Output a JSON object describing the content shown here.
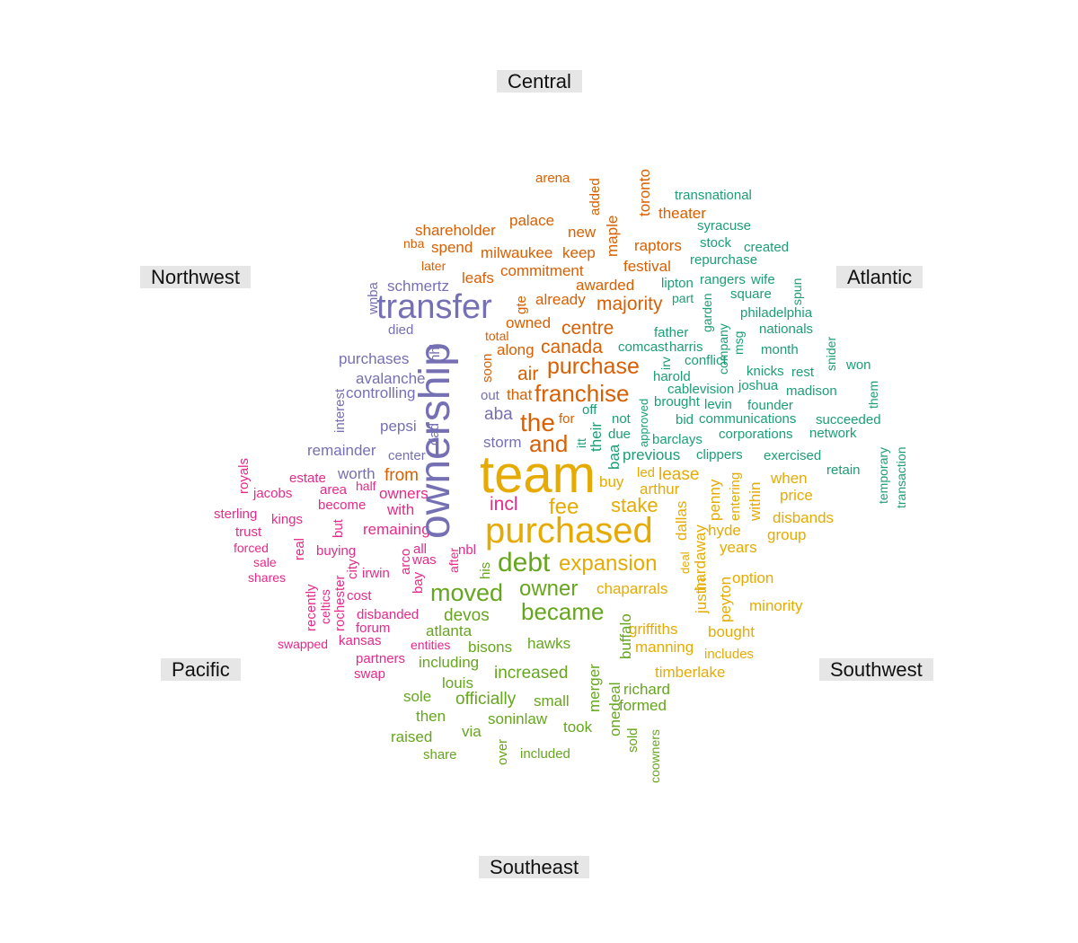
{
  "chart_data": {
    "type": "comparison-word-cloud",
    "groups": [
      {
        "name": "Central",
        "color": "#d95f02"
      },
      {
        "name": "Atlantic",
        "color": "#1b9e77"
      },
      {
        "name": "Southwest",
        "color": "#e6ab02"
      },
      {
        "name": "Southeast",
        "color": "#66a61e"
      },
      {
        "name": "Pacific",
        "color": "#e7298a"
      },
      {
        "name": "Northwest",
        "color": "#7570b3"
      }
    ],
    "words": [
      {
        "t": "arena",
        "g": "Central",
        "s": 15
      },
      {
        "t": "added",
        "g": "Central",
        "s": 15
      },
      {
        "t": "toronto",
        "g": "Central",
        "s": 17
      },
      {
        "t": "theater",
        "g": "Central",
        "s": 17
      },
      {
        "t": "maple",
        "g": "Central",
        "s": 17
      },
      {
        "t": "palace",
        "g": "Central",
        "s": 17
      },
      {
        "t": "shareholder",
        "g": "Central",
        "s": 17
      },
      {
        "t": "new",
        "g": "Central",
        "s": 17
      },
      {
        "t": "nba",
        "g": "Central",
        "s": 14
      },
      {
        "t": "spend",
        "g": "Central",
        "s": 17
      },
      {
        "t": "milwaukee",
        "g": "Central",
        "s": 17
      },
      {
        "t": "keep",
        "g": "Central",
        "s": 17
      },
      {
        "t": "raptors",
        "g": "Central",
        "s": 17
      },
      {
        "t": "later",
        "g": "Central",
        "s": 14
      },
      {
        "t": "festival",
        "g": "Central",
        "s": 17
      },
      {
        "t": "commitment",
        "g": "Central",
        "s": 17
      },
      {
        "t": "leafs",
        "g": "Central",
        "s": 17
      },
      {
        "t": "awarded",
        "g": "Central",
        "s": 17
      },
      {
        "t": "gte",
        "g": "Central",
        "s": 15
      },
      {
        "t": "already",
        "g": "Central",
        "s": 17
      },
      {
        "t": "majority",
        "g": "Central",
        "s": 21
      },
      {
        "t": "owned",
        "g": "Central",
        "s": 17
      },
      {
        "t": "centre",
        "g": "Central",
        "s": 21
      },
      {
        "t": "total",
        "g": "Central",
        "s": 14
      },
      {
        "t": "canada",
        "g": "Central",
        "s": 21
      },
      {
        "t": "along",
        "g": "Central",
        "s": 17
      },
      {
        "t": "purchase",
        "g": "Central",
        "s": 25
      },
      {
        "t": "soon",
        "g": "Central",
        "s": 15
      },
      {
        "t": "air",
        "g": "Central",
        "s": 21
      },
      {
        "t": "franchise",
        "g": "Central",
        "s": 26
      },
      {
        "t": "that",
        "g": "Central",
        "s": 17
      },
      {
        "t": "for",
        "g": "Central",
        "s": 15
      },
      {
        "t": "the",
        "g": "Central",
        "s": 28
      },
      {
        "t": "and",
        "g": "Central",
        "s": 26
      },
      {
        "t": "transnational",
        "g": "Atlantic",
        "s": 15
      },
      {
        "t": "syracuse",
        "g": "Atlantic",
        "s": 15
      },
      {
        "t": "stock",
        "g": "Atlantic",
        "s": 15
      },
      {
        "t": "created",
        "g": "Atlantic",
        "s": 15
      },
      {
        "t": "repurchase",
        "g": "Atlantic",
        "s": 15
      },
      {
        "t": "rangers",
        "g": "Atlantic",
        "s": 15
      },
      {
        "t": "wife",
        "g": "Atlantic",
        "s": 15
      },
      {
        "t": "lipton",
        "g": "Atlantic",
        "s": 15
      },
      {
        "t": "spun",
        "g": "Atlantic",
        "s": 14
      },
      {
        "t": "square",
        "g": "Atlantic",
        "s": 15
      },
      {
        "t": "part",
        "g": "Atlantic",
        "s": 14
      },
      {
        "t": "garden",
        "g": "Atlantic",
        "s": 14
      },
      {
        "t": "philadelphia",
        "g": "Atlantic",
        "s": 15
      },
      {
        "t": "company",
        "g": "Atlantic",
        "s": 14
      },
      {
        "t": "nationals",
        "g": "Atlantic",
        "s": 15
      },
      {
        "t": "father",
        "g": "Atlantic",
        "s": 15
      },
      {
        "t": "msg",
        "g": "Atlantic",
        "s": 14
      },
      {
        "t": "snider",
        "g": "Atlantic",
        "s": 14
      },
      {
        "t": "comcast",
        "g": "Atlantic",
        "s": 15
      },
      {
        "t": "harris",
        "g": "Atlantic",
        "s": 15
      },
      {
        "t": "month",
        "g": "Atlantic",
        "s": 15
      },
      {
        "t": "irv",
        "g": "Atlantic",
        "s": 14
      },
      {
        "t": "conflict",
        "g": "Atlantic",
        "s": 15
      },
      {
        "t": "won",
        "g": "Atlantic",
        "s": 15
      },
      {
        "t": "harold",
        "g": "Atlantic",
        "s": 15
      },
      {
        "t": "knicks",
        "g": "Atlantic",
        "s": 15
      },
      {
        "t": "rest",
        "g": "Atlantic",
        "s": 15
      },
      {
        "t": "them",
        "g": "Atlantic",
        "s": 14
      },
      {
        "t": "cablevision",
        "g": "Atlantic",
        "s": 15
      },
      {
        "t": "joshua",
        "g": "Atlantic",
        "s": 15
      },
      {
        "t": "madison",
        "g": "Atlantic",
        "s": 15
      },
      {
        "t": "brought",
        "g": "Atlantic",
        "s": 15
      },
      {
        "t": "approved",
        "g": "Atlantic",
        "s": 13
      },
      {
        "t": "levin",
        "g": "Atlantic",
        "s": 15
      },
      {
        "t": "founder",
        "g": "Atlantic",
        "s": 15
      },
      {
        "t": "off",
        "g": "Atlantic",
        "s": 15
      },
      {
        "t": "not",
        "g": "Atlantic",
        "s": 15
      },
      {
        "t": "bid",
        "g": "Atlantic",
        "s": 15
      },
      {
        "t": "communications",
        "g": "Atlantic",
        "s": 15
      },
      {
        "t": "succeeded",
        "g": "Atlantic",
        "s": 15
      },
      {
        "t": "their",
        "g": "Atlantic",
        "s": 17
      },
      {
        "t": "due",
        "g": "Atlantic",
        "s": 15
      },
      {
        "t": "corporations",
        "g": "Atlantic",
        "s": 15
      },
      {
        "t": "network",
        "g": "Atlantic",
        "s": 15
      },
      {
        "t": "itt",
        "g": "Atlantic",
        "s": 14
      },
      {
        "t": "barclays",
        "g": "Atlantic",
        "s": 15
      },
      {
        "t": "temporary",
        "g": "Atlantic",
        "s": 14
      },
      {
        "t": "transaction",
        "g": "Atlantic",
        "s": 14
      },
      {
        "t": "baa",
        "g": "Atlantic",
        "s": 17
      },
      {
        "t": "previous",
        "g": "Atlantic",
        "s": 17
      },
      {
        "t": "clippers",
        "g": "Atlantic",
        "s": 15
      },
      {
        "t": "exercised",
        "g": "Atlantic",
        "s": 15
      },
      {
        "t": "retain",
        "g": "Atlantic",
        "s": 15
      },
      {
        "t": "team",
        "g": "Southwest",
        "s": 58
      },
      {
        "t": "purchased",
        "g": "Southwest",
        "s": 40
      },
      {
        "t": "led",
        "g": "Southwest",
        "s": 15
      },
      {
        "t": "lease",
        "g": "Southwest",
        "s": 19
      },
      {
        "t": "buy",
        "g": "Southwest",
        "s": 17
      },
      {
        "t": "arthur",
        "g": "Southwest",
        "s": 17
      },
      {
        "t": "dallas",
        "g": "Southwest",
        "s": 17
      },
      {
        "t": "penny",
        "g": "Southwest",
        "s": 17
      },
      {
        "t": "entering",
        "g": "Southwest",
        "s": 15
      },
      {
        "t": "within",
        "g": "Southwest",
        "s": 17
      },
      {
        "t": "when",
        "g": "Southwest",
        "s": 17
      },
      {
        "t": "price",
        "g": "Southwest",
        "s": 17
      },
      {
        "t": "fee",
        "g": "Southwest",
        "s": 24
      },
      {
        "t": "stake",
        "g": "Southwest",
        "s": 22
      },
      {
        "t": "hardaway",
        "g": "Southwest",
        "s": 17
      },
      {
        "t": "disbands",
        "g": "Southwest",
        "s": 17
      },
      {
        "t": "hyde",
        "g": "Southwest",
        "s": 17
      },
      {
        "t": "group",
        "g": "Southwest",
        "s": 17
      },
      {
        "t": "years",
        "g": "Southwest",
        "s": 17
      },
      {
        "t": "deal",
        "g": "Southwest",
        "s": 13
      },
      {
        "t": "justin",
        "g": "Southwest",
        "s": 17
      },
      {
        "t": "expansion",
        "g": "Southwest",
        "s": 24
      },
      {
        "t": "option",
        "g": "Southwest",
        "s": 17
      },
      {
        "t": "peyton",
        "g": "Southwest",
        "s": 17
      },
      {
        "t": "chaparrals",
        "g": "Southwest",
        "s": 17
      },
      {
        "t": "minority",
        "g": "Southwest",
        "s": 17
      },
      {
        "t": "griffiths",
        "g": "Southwest",
        "s": 17
      },
      {
        "t": "bought",
        "g": "Southwest",
        "s": 17
      },
      {
        "t": "manning",
        "g": "Southwest",
        "s": 17
      },
      {
        "t": "includes",
        "g": "Southwest",
        "s": 15
      },
      {
        "t": "timberlake",
        "g": "Southwest",
        "s": 17
      },
      {
        "t": "debt",
        "g": "Southeast",
        "s": 30
      },
      {
        "t": "moved",
        "g": "Southeast",
        "s": 27
      },
      {
        "t": "owner",
        "g": "Southeast",
        "s": 24
      },
      {
        "t": "became",
        "g": "Southeast",
        "s": 26
      },
      {
        "t": "devos",
        "g": "Southeast",
        "s": 19
      },
      {
        "t": "his",
        "g": "Southeast",
        "s": 15
      },
      {
        "t": "buffalo",
        "g": "Southeast",
        "s": 17
      },
      {
        "t": "atlanta",
        "g": "Southeast",
        "s": 17
      },
      {
        "t": "bisons",
        "g": "Southeast",
        "s": 17
      },
      {
        "t": "hawks",
        "g": "Southeast",
        "s": 17
      },
      {
        "t": "including",
        "g": "Southeast",
        "s": 17
      },
      {
        "t": "increased",
        "g": "Southeast",
        "s": 19
      },
      {
        "t": "merger",
        "g": "Southeast",
        "s": 17
      },
      {
        "t": "louis",
        "g": "Southeast",
        "s": 17
      },
      {
        "t": "richard",
        "g": "Southeast",
        "s": 17
      },
      {
        "t": "onedeal",
        "g": "Southeast",
        "s": 17
      },
      {
        "t": "sole",
        "g": "Southeast",
        "s": 17
      },
      {
        "t": "officially",
        "g": "Southeast",
        "s": 19
      },
      {
        "t": "small",
        "g": "Southeast",
        "s": 17
      },
      {
        "t": "formed",
        "g": "Southeast",
        "s": 17
      },
      {
        "t": "then",
        "g": "Southeast",
        "s": 17
      },
      {
        "t": "soninlaw",
        "g": "Southeast",
        "s": 17
      },
      {
        "t": "took",
        "g": "Southeast",
        "s": 17
      },
      {
        "t": "raised",
        "g": "Southeast",
        "s": 17
      },
      {
        "t": "via",
        "g": "Southeast",
        "s": 17
      },
      {
        "t": "over",
        "g": "Southeast",
        "s": 15
      },
      {
        "t": "sold",
        "g": "Southeast",
        "s": 15
      },
      {
        "t": "coowners",
        "g": "Southeast",
        "s": 14
      },
      {
        "t": "share",
        "g": "Southeast",
        "s": 15
      },
      {
        "t": "included",
        "g": "Southeast",
        "s": 15
      },
      {
        "t": "royals",
        "g": "Pacific",
        "s": 15
      },
      {
        "t": "estate",
        "g": "Pacific",
        "s": 15
      },
      {
        "t": "jacobs",
        "g": "Pacific",
        "s": 15
      },
      {
        "t": "area",
        "g": "Pacific",
        "s": 15
      },
      {
        "t": "half",
        "g": "Pacific",
        "s": 14
      },
      {
        "t": "owners",
        "g": "Pacific",
        "s": 17
      },
      {
        "t": "sterling",
        "g": "Pacific",
        "s": 15
      },
      {
        "t": "kings",
        "g": "Pacific",
        "s": 15
      },
      {
        "t": "become",
        "g": "Pacific",
        "s": 15
      },
      {
        "t": "with",
        "g": "Pacific",
        "s": 17
      },
      {
        "t": "trust",
        "g": "Pacific",
        "s": 15
      },
      {
        "t": "but",
        "g": "Pacific",
        "s": 15
      },
      {
        "t": "remaining",
        "g": "Pacific",
        "s": 17
      },
      {
        "t": "forced",
        "g": "Pacific",
        "s": 14
      },
      {
        "t": "real",
        "g": "Pacific",
        "s": 15
      },
      {
        "t": "buying",
        "g": "Pacific",
        "s": 15
      },
      {
        "t": "all",
        "g": "Pacific",
        "s": 15
      },
      {
        "t": "arco",
        "g": "Pacific",
        "s": 15
      },
      {
        "t": "sale",
        "g": "Pacific",
        "s": 14
      },
      {
        "t": "city",
        "g": "Pacific",
        "s": 15
      },
      {
        "t": "was",
        "g": "Pacific",
        "s": 15
      },
      {
        "t": "after",
        "g": "Pacific",
        "s": 14
      },
      {
        "t": "shares",
        "g": "Pacific",
        "s": 14
      },
      {
        "t": "irwin",
        "g": "Pacific",
        "s": 15
      },
      {
        "t": "bay",
        "g": "Pacific",
        "s": 15
      },
      {
        "t": "recently",
        "g": "Pacific",
        "s": 15
      },
      {
        "t": "celtics",
        "g": "Pacific",
        "s": 14
      },
      {
        "t": "rochester",
        "g": "Pacific",
        "s": 15
      },
      {
        "t": "cost",
        "g": "Pacific",
        "s": 15
      },
      {
        "t": "disbanded",
        "g": "Pacific",
        "s": 15
      },
      {
        "t": "forum",
        "g": "Pacific",
        "s": 15
      },
      {
        "t": "entities",
        "g": "Pacific",
        "s": 14
      },
      {
        "t": "swapped",
        "g": "Pacific",
        "s": 14
      },
      {
        "t": "kansas",
        "g": "Pacific",
        "s": 15
      },
      {
        "t": "partners",
        "g": "Pacific",
        "s": 15
      },
      {
        "t": "swap",
        "g": "Pacific",
        "s": 15
      },
      {
        "t": "ownership",
        "g": "Northwest",
        "s": 48
      },
      {
        "t": "transfer",
        "g": "Northwest",
        "s": 38
      },
      {
        "t": "wnba",
        "g": "Northwest",
        "s": 15
      },
      {
        "t": "schmertz",
        "g": "Northwest",
        "s": 17
      },
      {
        "t": "died",
        "g": "Northwest",
        "s": 15
      },
      {
        "t": "nhl",
        "g": "Northwest",
        "s": 15
      },
      {
        "t": "purchases",
        "g": "Northwest",
        "s": 17
      },
      {
        "t": "avalanche",
        "g": "Northwest",
        "s": 17
      },
      {
        "t": "controlling",
        "g": "Northwest",
        "s": 17
      },
      {
        "t": "interest",
        "g": "Northwest",
        "s": 15
      },
      {
        "t": "out",
        "g": "Northwest",
        "s": 15
      },
      {
        "t": "aba",
        "g": "Northwest",
        "s": 19
      },
      {
        "t": "pepsi",
        "g": "Northwest",
        "s": 17
      },
      {
        "t": "dad",
        "g": "Northwest",
        "s": 15
      },
      {
        "t": "storm",
        "g": "Northwest",
        "s": 17
      },
      {
        "t": "remainder",
        "g": "Northwest",
        "s": 17
      },
      {
        "t": "center",
        "g": "Northwest",
        "s": 15
      },
      {
        "t": "worth",
        "g": "Northwest",
        "s": 17
      },
      {
        "t": "from",
        "g": "Central",
        "s": 19
      },
      {
        "t": "incl",
        "g": "Pacific",
        "s": 21
      },
      {
        "t": "nbl",
        "g": "Pacific",
        "s": 15
      }
    ]
  }
}
